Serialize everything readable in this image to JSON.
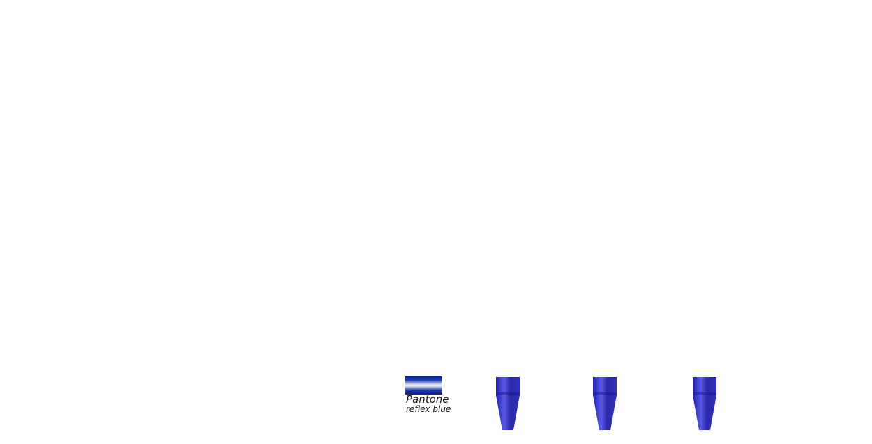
{
  "swatch": {
    "name": "Pantone",
    "subname": "reflex blue",
    "color": "#0a1f9a"
  },
  "tips": [
    {
      "color": "#3a3ad0"
    },
    {
      "color": "#3a3ad0"
    },
    {
      "color": "#3a3ad0"
    }
  ]
}
